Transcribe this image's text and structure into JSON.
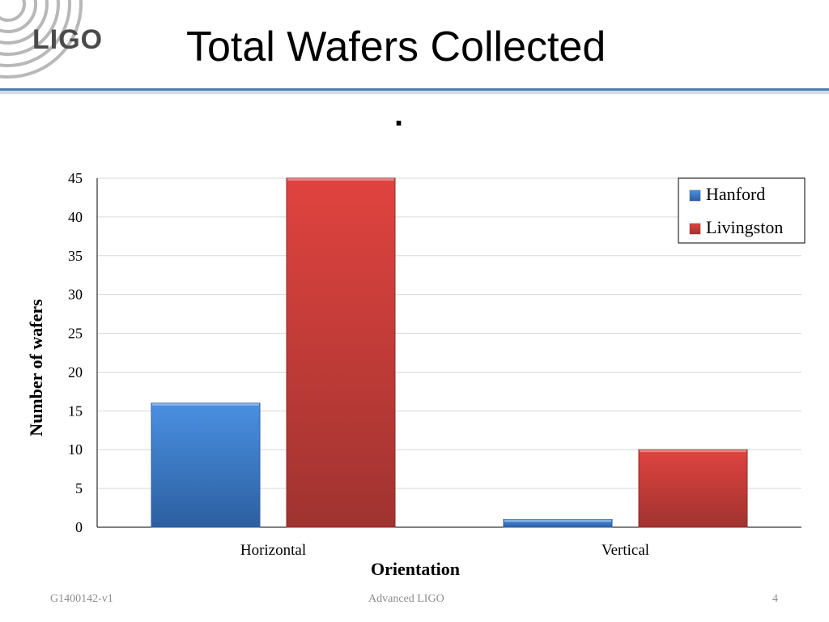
{
  "slide": {
    "title": "Total Wafers Collected",
    "subtitle": ".",
    "logo_text": "LIGO"
  },
  "footer": {
    "left": "G1400142-v1",
    "center": "Advanced LIGO",
    "right": "4"
  },
  "colors": {
    "hanford": "#3d7ed4",
    "livingston": "#d03c38",
    "rule": "#4f7fb6"
  },
  "chart_data": {
    "type": "bar",
    "categories": [
      "Horizontal",
      "Vertical"
    ],
    "series": [
      {
        "name": "Hanford",
        "values": [
          16,
          1
        ]
      },
      {
        "name": "Livingston",
        "values": [
          45,
          10
        ]
      }
    ],
    "title": "",
    "xlabel": "Orientation",
    "ylabel": "Number of wafers",
    "ylim": [
      0,
      45
    ],
    "yticks": [
      "0",
      "5",
      "10",
      "15",
      "20",
      "25",
      "30",
      "35",
      "40",
      "45"
    ],
    "grid": true,
    "legend": "top-right"
  }
}
